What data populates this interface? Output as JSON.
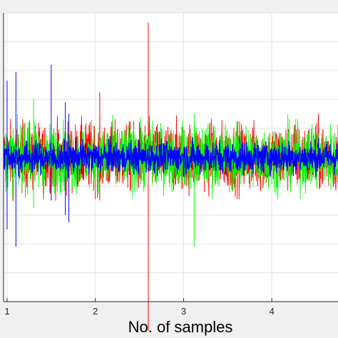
{
  "chart_data": {
    "type": "line",
    "title": "",
    "xlabel": "No. of samples",
    "ylabel": "",
    "x_tick_labels": [
      "1",
      "2",
      "3",
      "4"
    ],
    "x_ticks": [
      1,
      2,
      3,
      4
    ],
    "xlim": [
      0.96,
      4.75
    ],
    "ylim": [
      -1,
      1
    ],
    "grid": true,
    "legend": "none",
    "series": [
      {
        "color": "#ff0000",
        "envelope": 0.32,
        "spikes": [
          [
            2.6,
            0.93,
            -1.2
          ],
          [
            2.05,
            0.45,
            -0.3
          ]
        ]
      },
      {
        "color": "#00ff00",
        "envelope": 0.3,
        "spikes": [
          [
            3.12,
            0.3,
            -0.62
          ],
          [
            1.3,
            0.4,
            -0.35
          ]
        ]
      },
      {
        "color": "#0000ff",
        "envelope": 0.15,
        "spikes": [
          [
            1.1,
            0.59,
            -0.62
          ],
          [
            1.5,
            0.64,
            -0.3
          ],
          [
            1.66,
            0.38,
            -0.4
          ],
          [
            1.0,
            0.53,
            -0.5
          ],
          [
            1.7,
            0.3,
            -0.45
          ]
        ]
      }
    ]
  }
}
